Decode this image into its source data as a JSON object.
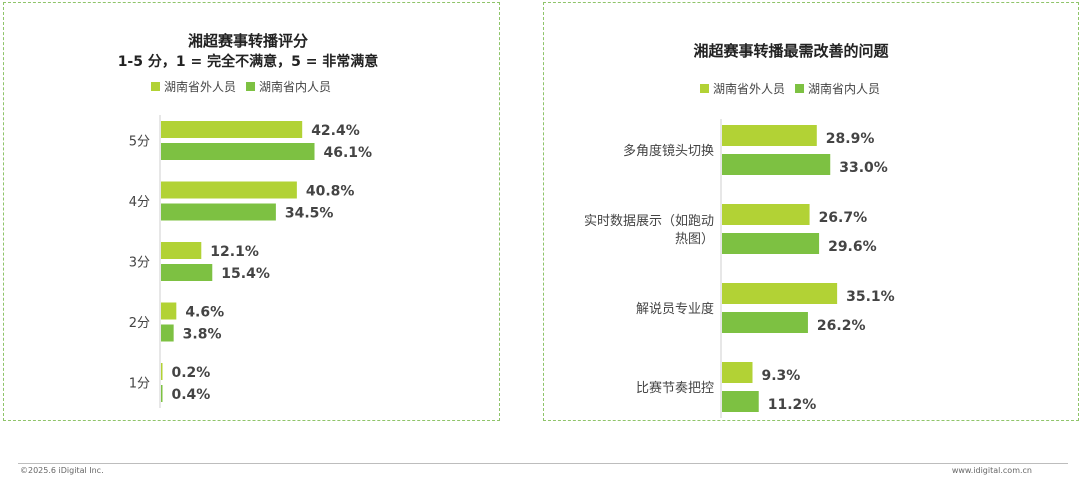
{
  "colors": {
    "outside": "#b2d235",
    "inside": "#7dc142",
    "border": "#8fc46a"
  },
  "footer": {
    "copyright": "©2025.6 iDigital Inc.",
    "website": "www.idigital.com.cn"
  },
  "chart_data": [
    {
      "type": "bar",
      "orientation": "horizontal",
      "title": "湘超赛事转播评分",
      "subtitle": "1-5 分，1 = 完全不满意，5 = 非常满意",
      "categories": [
        "5分",
        "4分",
        "3分",
        "2分",
        "1分"
      ],
      "series": [
        {
          "name": "湖南省外人员",
          "values": [
            42.4,
            40.8,
            12.1,
            4.6,
            0.2
          ],
          "labels": [
            "42.4%",
            "40.8%",
            "12.1%",
            "4.6%",
            "0.2%"
          ]
        },
        {
          "name": "湖南省内人员",
          "values": [
            46.1,
            34.5,
            15.4,
            3.8,
            0.4
          ],
          "labels": [
            "46.1%",
            "34.5%",
            "15.4%",
            "3.8%",
            "0.4%"
          ]
        }
      ],
      "unit": "%",
      "legend": "top",
      "grid": false
    },
    {
      "type": "bar",
      "orientation": "horizontal",
      "title": "湘超赛事转播最需改善的问题",
      "categories": [
        [
          "多角度镜头切换"
        ],
        [
          "实时数据展示（如跑动",
          "热图）"
        ],
        [
          "解说员专业度"
        ],
        [
          "比赛节奏把控"
        ]
      ],
      "series": [
        {
          "name": "湖南省外人员",
          "values": [
            28.9,
            26.7,
            35.1,
            9.3
          ],
          "labels": [
            "28.9%",
            "26.7%",
            "35.1%",
            "9.3%"
          ]
        },
        {
          "name": "湖南省内人员",
          "values": [
            33.0,
            29.6,
            26.2,
            11.2
          ],
          "labels": [
            "33.0%",
            "29.6%",
            "26.2%",
            "11.2%"
          ]
        }
      ],
      "unit": "%",
      "legend": "top",
      "grid": false
    }
  ]
}
